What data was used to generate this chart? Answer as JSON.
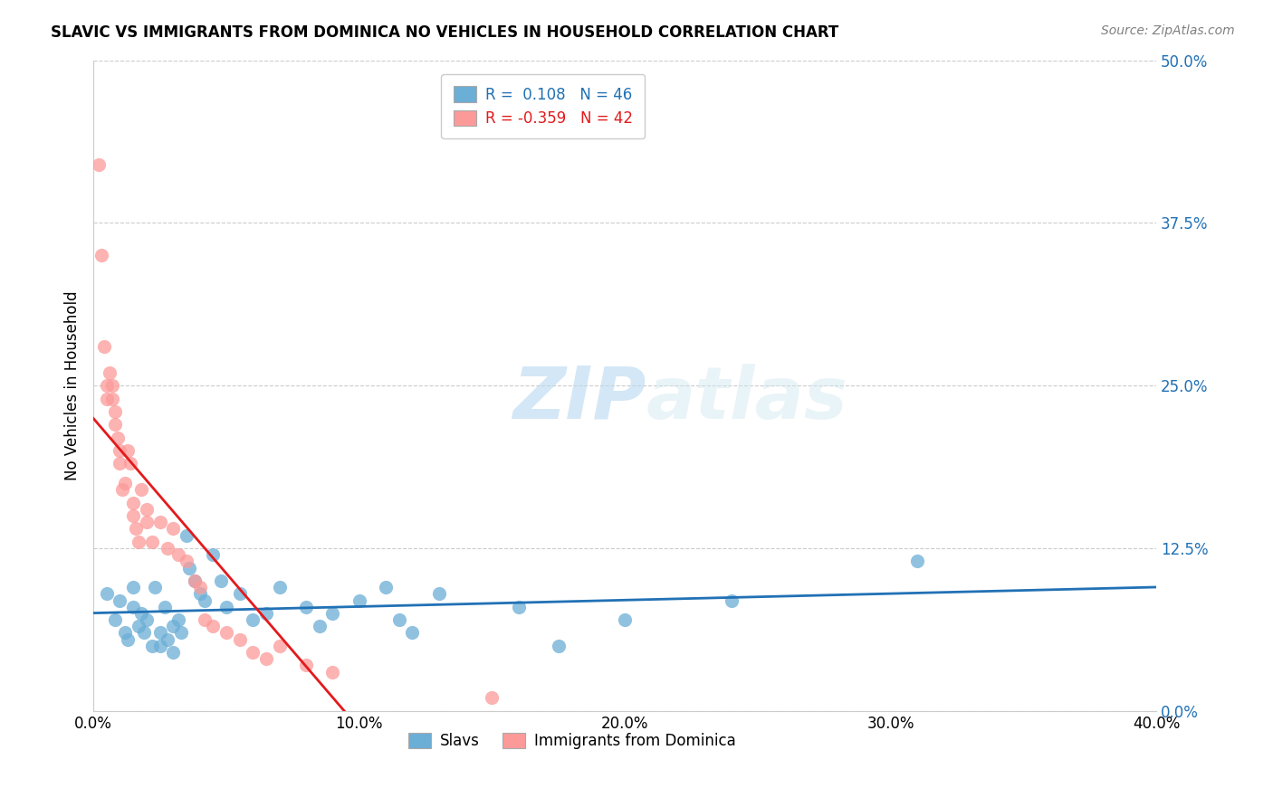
{
  "title": "SLAVIC VS IMMIGRANTS FROM DOMINICA NO VEHICLES IN HOUSEHOLD CORRELATION CHART",
  "source": "Source: ZipAtlas.com",
  "xlabel_ticks": [
    "0.0%",
    "10.0%",
    "20.0%",
    "30.0%",
    "40.0%"
  ],
  "xlabel_tick_vals": [
    0.0,
    0.1,
    0.2,
    0.3,
    0.4
  ],
  "ylabel": "No Vehicles in Household",
  "ylabel_ticks": [
    "0.0%",
    "12.5%",
    "25.0%",
    "37.5%",
    "50.0%"
  ],
  "ylabel_tick_vals": [
    0.0,
    0.125,
    0.25,
    0.375,
    0.5
  ],
  "xlim": [
    0.0,
    0.4
  ],
  "ylim": [
    0.0,
    0.5
  ],
  "legend_label1": "Slavs",
  "legend_label2": "Immigrants from Dominica",
  "r1": 0.108,
  "n1": 46,
  "r2": -0.359,
  "n2": 42,
  "color_blue": "#6baed6",
  "color_pink": "#fb9a99",
  "color_line_blue": "#2171b5",
  "color_line_pink": "#e31a1c",
  "watermark_zip": "ZIP",
  "watermark_atlas": "atlas",
  "slavs_x": [
    0.005,
    0.008,
    0.01,
    0.012,
    0.013,
    0.015,
    0.015,
    0.017,
    0.018,
    0.019,
    0.02,
    0.022,
    0.023,
    0.025,
    0.025,
    0.027,
    0.028,
    0.03,
    0.03,
    0.032,
    0.033,
    0.035,
    0.036,
    0.038,
    0.04,
    0.042,
    0.045,
    0.048,
    0.05,
    0.055,
    0.06,
    0.065,
    0.07,
    0.08,
    0.085,
    0.09,
    0.1,
    0.11,
    0.115,
    0.12,
    0.13,
    0.16,
    0.175,
    0.2,
    0.24,
    0.31
  ],
  "slavs_y": [
    0.09,
    0.07,
    0.085,
    0.06,
    0.055,
    0.095,
    0.08,
    0.065,
    0.075,
    0.06,
    0.07,
    0.05,
    0.095,
    0.06,
    0.05,
    0.08,
    0.055,
    0.065,
    0.045,
    0.07,
    0.06,
    0.135,
    0.11,
    0.1,
    0.09,
    0.085,
    0.12,
    0.1,
    0.08,
    0.09,
    0.07,
    0.075,
    0.095,
    0.08,
    0.065,
    0.075,
    0.085,
    0.095,
    0.07,
    0.06,
    0.09,
    0.08,
    0.05,
    0.07,
    0.085,
    0.115
  ],
  "dominica_x": [
    0.002,
    0.003,
    0.004,
    0.005,
    0.005,
    0.006,
    0.007,
    0.007,
    0.008,
    0.008,
    0.009,
    0.01,
    0.01,
    0.011,
    0.012,
    0.013,
    0.014,
    0.015,
    0.015,
    0.016,
    0.017,
    0.018,
    0.02,
    0.02,
    0.022,
    0.025,
    0.028,
    0.03,
    0.032,
    0.035,
    0.038,
    0.04,
    0.042,
    0.045,
    0.05,
    0.055,
    0.06,
    0.065,
    0.07,
    0.08,
    0.09,
    0.15
  ],
  "dominica_y": [
    0.42,
    0.35,
    0.28,
    0.25,
    0.24,
    0.26,
    0.25,
    0.24,
    0.23,
    0.22,
    0.21,
    0.19,
    0.2,
    0.17,
    0.175,
    0.2,
    0.19,
    0.16,
    0.15,
    0.14,
    0.13,
    0.17,
    0.145,
    0.155,
    0.13,
    0.145,
    0.125,
    0.14,
    0.12,
    0.115,
    0.1,
    0.095,
    0.07,
    0.065,
    0.06,
    0.055,
    0.045,
    0.04,
    0.05,
    0.035,
    0.03,
    0.01
  ]
}
